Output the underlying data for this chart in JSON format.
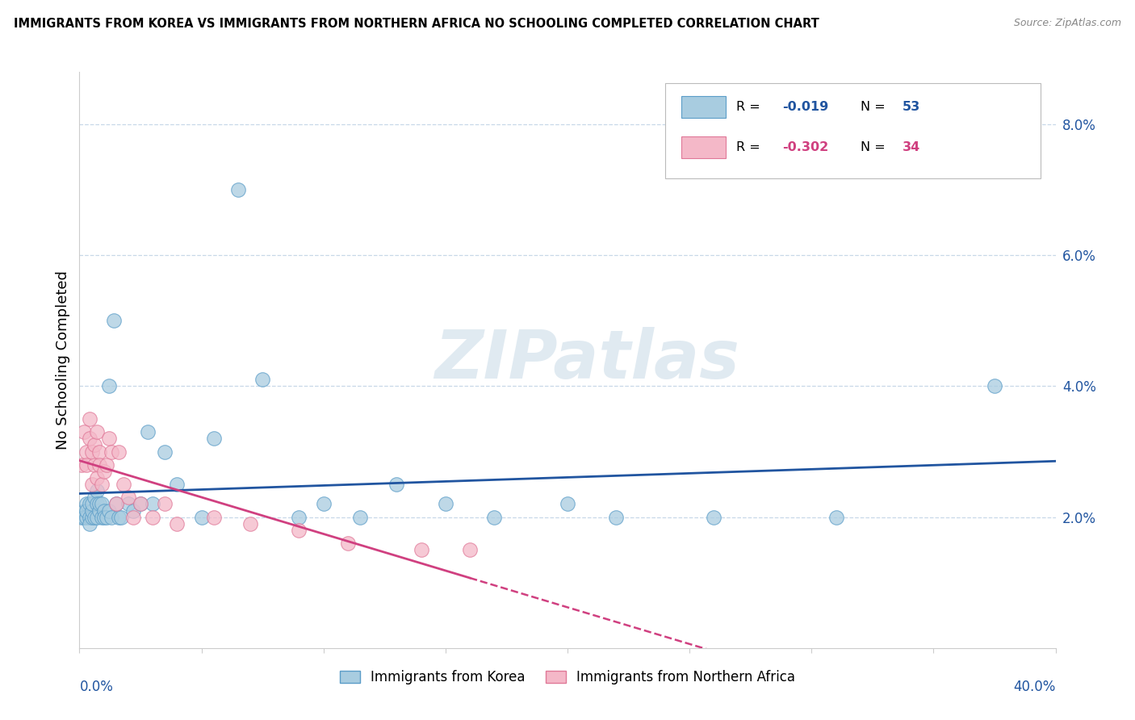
{
  "title": "IMMIGRANTS FROM KOREA VS IMMIGRANTS FROM NORTHERN AFRICA NO SCHOOLING COMPLETED CORRELATION CHART",
  "source": "Source: ZipAtlas.com",
  "ylabel": "No Schooling Completed",
  "legend_label_blue": "Immigrants from Korea",
  "legend_label_pink": "Immigrants from Northern Africa",
  "xlim": [
    0.0,
    0.4
  ],
  "ylim": [
    0.0,
    0.088
  ],
  "blue_fill": "#a8cce0",
  "blue_edge": "#5b9dc8",
  "pink_fill": "#f4b8c8",
  "pink_edge": "#e07898",
  "blue_line_color": "#2155a0",
  "pink_line_color": "#d04080",
  "blue_R_color": "#2155a0",
  "pink_R_color": "#d04080",
  "watermark": "ZIPatlas",
  "ytick_vals": [
    0.02,
    0.04,
    0.06,
    0.08
  ],
  "ytick_labels": [
    "2.0%",
    "4.0%",
    "6.0%",
    "8.0%"
  ],
  "korea_x": [
    0.001,
    0.002,
    0.002,
    0.003,
    0.003,
    0.003,
    0.004,
    0.004,
    0.004,
    0.005,
    0.005,
    0.005,
    0.006,
    0.006,
    0.007,
    0.007,
    0.007,
    0.008,
    0.008,
    0.009,
    0.009,
    0.01,
    0.01,
    0.011,
    0.012,
    0.012,
    0.013,
    0.014,
    0.015,
    0.016,
    0.017,
    0.02,
    0.022,
    0.025,
    0.028,
    0.03,
    0.035,
    0.04,
    0.05,
    0.055,
    0.065,
    0.075,
    0.09,
    0.1,
    0.115,
    0.13,
    0.15,
    0.17,
    0.2,
    0.22,
    0.26,
    0.31,
    0.375
  ],
  "korea_y": [
    0.02,
    0.021,
    0.02,
    0.022,
    0.02,
    0.021,
    0.022,
    0.02,
    0.019,
    0.02,
    0.021,
    0.022,
    0.023,
    0.02,
    0.024,
    0.022,
    0.02,
    0.021,
    0.022,
    0.022,
    0.02,
    0.021,
    0.02,
    0.02,
    0.021,
    0.04,
    0.02,
    0.05,
    0.022,
    0.02,
    0.02,
    0.022,
    0.021,
    0.022,
    0.033,
    0.022,
    0.03,
    0.025,
    0.02,
    0.032,
    0.07,
    0.041,
    0.02,
    0.022,
    0.02,
    0.025,
    0.022,
    0.02,
    0.022,
    0.02,
    0.02,
    0.02,
    0.04
  ],
  "africa_x": [
    0.001,
    0.002,
    0.003,
    0.003,
    0.004,
    0.004,
    0.005,
    0.005,
    0.006,
    0.006,
    0.007,
    0.007,
    0.008,
    0.008,
    0.009,
    0.01,
    0.011,
    0.012,
    0.013,
    0.015,
    0.016,
    0.018,
    0.02,
    0.022,
    0.025,
    0.03,
    0.035,
    0.04,
    0.055,
    0.07,
    0.09,
    0.11,
    0.14,
    0.16
  ],
  "africa_y": [
    0.028,
    0.033,
    0.03,
    0.028,
    0.035,
    0.032,
    0.025,
    0.03,
    0.028,
    0.031,
    0.033,
    0.026,
    0.03,
    0.028,
    0.025,
    0.027,
    0.028,
    0.032,
    0.03,
    0.022,
    0.03,
    0.025,
    0.023,
    0.02,
    0.022,
    0.02,
    0.022,
    0.019,
    0.02,
    0.019,
    0.018,
    0.016,
    0.015,
    0.015
  ]
}
